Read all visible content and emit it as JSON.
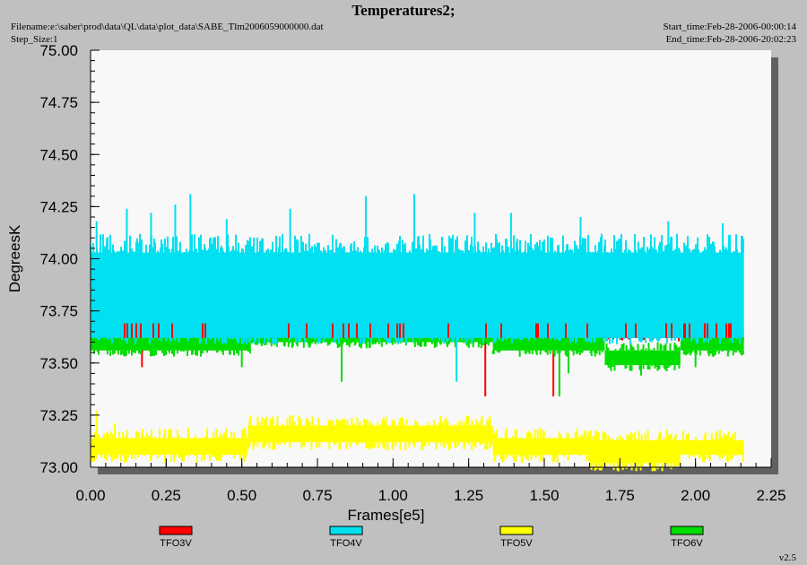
{
  "header": {
    "title": "Temperatures2;",
    "filename": "Filename:e:\\saber\\prod\\data\\QL\\data\\plot_data\\SABE_Tlm2006059000000.dat",
    "step_size": "Step_Size:1",
    "start_time": "Start_time:Feb-28-2006-00:00:14",
    "end_time": "End_time:Feb-28-2006-20:02:23"
  },
  "version": "v2.5",
  "colors": {
    "plot_bg": "#f8f8f8",
    "frame_bg": "#c0c0c0",
    "shadow": "#606060",
    "TFO3V": "#ff0000",
    "TFO4V": "#00e0f0",
    "TFO5V": "#ffff00",
    "TFO6V": "#00dd00"
  },
  "chart_data": {
    "type": "line",
    "title": "Temperatures2;",
    "xlabel": "Frames[e5]",
    "ylabel": "DegreesK",
    "xlim": [
      0,
      2.25
    ],
    "ylim": [
      73.0,
      75.0
    ],
    "xticks": [
      "0.00",
      "0.25",
      "0.50",
      "0.75",
      "1.00",
      "1.25",
      "1.50",
      "1.75",
      "2.00",
      "2.25"
    ],
    "yticks": [
      "73.00",
      "73.25",
      "73.50",
      "73.75",
      "74.00",
      "74.25",
      "74.50",
      "74.75",
      "75.00"
    ],
    "x_range_data": [
      0,
      2.16
    ],
    "grid": false,
    "legend_position": "bottom",
    "series": [
      {
        "name": "TFO3V",
        "color": "#ff0000",
        "band": [
          73.62,
          73.66
        ],
        "spikes": [
          [
            0.17,
            73.48
          ],
          [
            0.24,
            73.82
          ],
          [
            0.44,
            73.79
          ],
          [
            0.57,
            73.78
          ],
          [
            0.68,
            73.8
          ],
          [
            0.83,
            73.79
          ],
          [
            0.92,
            73.78
          ],
          [
            1.06,
            73.76
          ],
          [
            1.3,
            73.82
          ],
          [
            1.305,
            73.34
          ],
          [
            1.53,
            73.34
          ],
          [
            1.6,
            73.78
          ],
          [
            2.02,
            73.76
          ]
        ]
      },
      {
        "name": "TFO4V",
        "color": "#00e0f0",
        "band": [
          73.62,
          74.03
        ],
        "spikes": [
          [
            0.02,
            74.18
          ],
          [
            0.12,
            74.24
          ],
          [
            0.2,
            74.22
          ],
          [
            0.28,
            74.26
          ],
          [
            0.33,
            74.31
          ],
          [
            0.45,
            74.19
          ],
          [
            0.66,
            74.24
          ],
          [
            0.91,
            74.3
          ],
          [
            1.07,
            74.31
          ],
          [
            1.21,
            73.41
          ],
          [
            1.27,
            74.22
          ],
          [
            1.39,
            74.22
          ],
          [
            1.62,
            74.2
          ],
          [
            1.91,
            74.18
          ],
          [
            2.09,
            74.17
          ]
        ],
        "upper_spikes_top": 74.12
      },
      {
        "name": "TFO5V",
        "color": "#ffff00",
        "segments": [
          {
            "x": [
              0.0,
              0.52
            ],
            "band": [
              73.06,
              73.14
            ]
          },
          {
            "x": [
              0.52,
              1.33
            ],
            "band": [
              73.12,
              73.2
            ]
          },
          {
            "x": [
              1.33,
              1.65
            ],
            "band": [
              73.06,
              73.14
            ]
          },
          {
            "x": [
              1.65,
              1.95
            ],
            "band": [
              73.02,
              73.13
            ]
          },
          {
            "x": [
              1.95,
              2.16
            ],
            "band": [
              73.06,
              73.13
            ]
          }
        ],
        "spikes": [
          [
            0.02,
            73.27
          ],
          [
            0.08,
            73.21
          ],
          [
            0.6,
            73.22
          ],
          [
            0.87,
            73.21
          ],
          [
            1.1,
            73.2
          ]
        ]
      },
      {
        "name": "TFO6V",
        "color": "#00dd00",
        "segments": [
          {
            "x": [
              0.0,
              0.53
            ],
            "band": [
              73.56,
              73.63
            ]
          },
          {
            "x": [
              0.53,
              1.33
            ],
            "band": [
              73.6,
              73.68
            ]
          },
          {
            "x": [
              1.33,
              1.7
            ],
            "band": [
              73.56,
              73.63
            ]
          },
          {
            "x": [
              1.7,
              1.95
            ],
            "band": [
              73.49,
              73.56
            ]
          },
          {
            "x": [
              1.95,
              2.16
            ],
            "band": [
              73.56,
              73.62
            ]
          }
        ],
        "spikes": [
          [
            0.5,
            73.48
          ],
          [
            0.83,
            73.41
          ],
          [
            1.36,
            73.75
          ],
          [
            1.55,
            73.34
          ],
          [
            1.58,
            73.45
          ],
          [
            1.82,
            73.44
          ],
          [
            2.0,
            73.48
          ]
        ]
      }
    ]
  }
}
